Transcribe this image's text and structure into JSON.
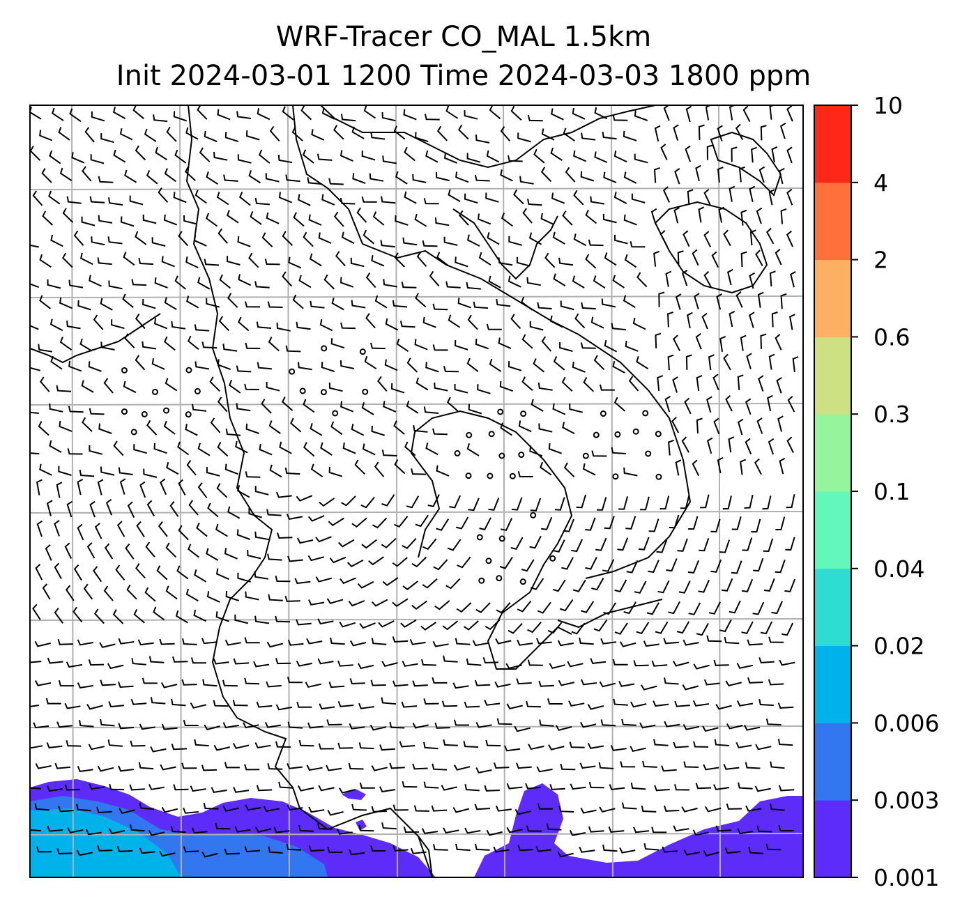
{
  "title": {
    "line1": "WRF-Tracer CO_MAL 1.5km",
    "line2": "Init 2024-03-01 1200 Time 2024-03-03 1800 ppm"
  },
  "colors": {
    "tracer_levels": [
      "#5d2cf9",
      "#3277f0",
      "#00b2ea",
      "#2edcd2",
      "#63f7bb",
      "#94f59c",
      "#cde183",
      "#fdb062",
      "#ff703a",
      "#ff2818"
    ],
    "gridline": "#b0b0b0",
    "coastline": "#000000",
    "barbs": "#000000"
  },
  "chart_data": {
    "type": "heatmap",
    "colorbar": {
      "boundaries": [
        0.001,
        0.003,
        0.006,
        0.02,
        0.04,
        0.1,
        0.3,
        0.6,
        2,
        4,
        10
      ],
      "tick_labels": [
        "0.001",
        "0.003",
        "0.006",
        "0.02",
        "0.04",
        "0.1",
        "0.3",
        "0.6",
        "2",
        "4",
        "10"
      ]
    },
    "overlays": [
      "wind barbs",
      "coastlines",
      "gridlines"
    ],
    "grid": true,
    "tracer_regions": [
      {
        "area": "bottom-left",
        "levels": [
          "0.001",
          "0.003",
          "0.006"
        ]
      },
      {
        "area": "bottom-center",
        "levels": [
          "0.001"
        ]
      },
      {
        "area": "bottom-right",
        "levels": [
          "0.001"
        ]
      }
    ]
  }
}
